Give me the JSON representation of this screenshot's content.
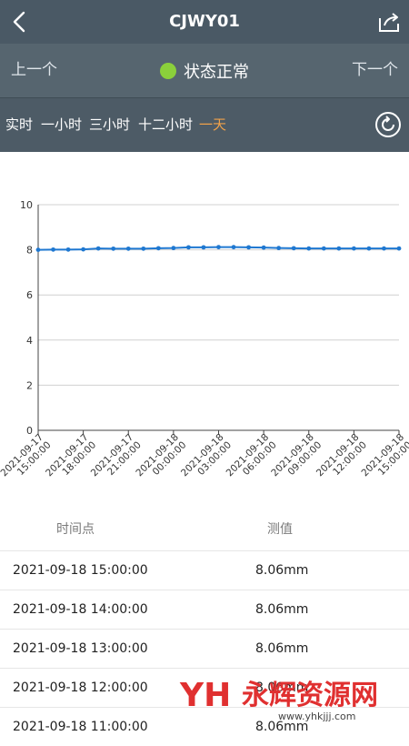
{
  "header": {
    "title": "CJWY01",
    "back_icon": "back-arrow-icon",
    "share_icon": "share-icon"
  },
  "status_bar": {
    "prev_label": "上一个",
    "status_text": "状态正常",
    "status_color": "#8bd03b",
    "next_label": "下一个"
  },
  "tabs": [
    {
      "label": "实时",
      "active": false
    },
    {
      "label": "一小时",
      "active": false
    },
    {
      "label": "三小时",
      "active": false
    },
    {
      "label": "十二小时",
      "active": false
    },
    {
      "label": "一天",
      "active": true
    }
  ],
  "refresh_icon": "refresh-icon",
  "chart_data": {
    "type": "line",
    "title": "",
    "xlabel": "",
    "ylabel": "",
    "ylim": [
      0,
      10
    ],
    "yticks": [
      0,
      2,
      4,
      6,
      8,
      10
    ],
    "grid": true,
    "x_tick_labels": [
      "2021-09-17 15:00:00",
      "2021-09-17 18:00:00",
      "2021-09-17 21:00:00",
      "2021-09-18 00:00:00",
      "2021-09-18 03:00:00",
      "2021-09-18 06:00:00",
      "2021-09-18 09:00:00",
      "2021-09-18 12:00:00",
      "2021-09-18 15:00:00"
    ],
    "series": [
      {
        "color": "#1f78d1",
        "values": [
          8.0,
          8.01,
          8.01,
          8.02,
          8.06,
          8.05,
          8.05,
          8.05,
          8.07,
          8.08,
          8.11,
          8.11,
          8.12,
          8.12,
          8.11,
          8.1,
          8.08,
          8.07,
          8.06,
          8.06,
          8.06,
          8.06,
          8.06,
          8.06,
          8.06
        ]
      }
    ]
  },
  "table": {
    "headers": {
      "time": "时间点",
      "value": "测值"
    },
    "rows": [
      {
        "time": "2021-09-18 15:00:00",
        "value": "8.06mm"
      },
      {
        "time": "2021-09-18 14:00:00",
        "value": "8.06mm"
      },
      {
        "time": "2021-09-18 13:00:00",
        "value": "8.06mm"
      },
      {
        "time": "2021-09-18 12:00:00",
        "value": "8.06mm"
      },
      {
        "time": "2021-09-18 11:00:00",
        "value": "8.06mm"
      }
    ]
  },
  "watermark": {
    "text": "永辉资源网",
    "url": "www.yhkjjj.com"
  }
}
